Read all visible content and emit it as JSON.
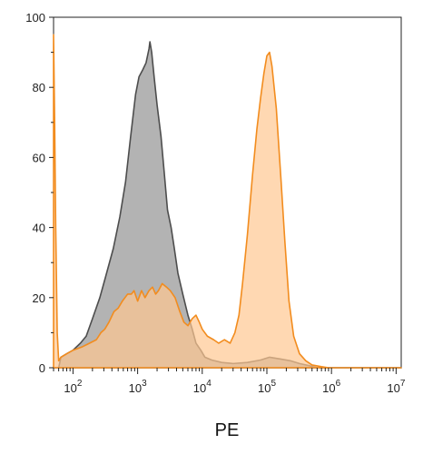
{
  "chart_data": {
    "type": "area",
    "title": "",
    "xlabel": "PE",
    "ylabel": "",
    "x_scale": "log",
    "xlim": [
      50,
      12000000
    ],
    "ylim": [
      0,
      100
    ],
    "x_tick_labels": [
      {
        "value": 100,
        "base": "10",
        "exp": "2"
      },
      {
        "value": 1000,
        "base": "10",
        "exp": "3"
      },
      {
        "value": 10000,
        "base": "10",
        "exp": "4"
      },
      {
        "value": 100000,
        "base": "10",
        "exp": "5"
      },
      {
        "value": 1000000,
        "base": "10",
        "exp": "6"
      },
      {
        "value": 10000000,
        "base": "10",
        "exp": "7"
      }
    ],
    "y_ticks": [
      0,
      20,
      40,
      60,
      80,
      100
    ],
    "grid": false,
    "series": [
      {
        "fill": "#b3b3b3",
        "stroke": "#4d4d4d",
        "points": [
          [
            50,
            0
          ],
          [
            60,
            0
          ],
          [
            65,
            3
          ],
          [
            80,
            4
          ],
          [
            100,
            5
          ],
          [
            130,
            7
          ],
          [
            160,
            9
          ],
          [
            200,
            14
          ],
          [
            260,
            20
          ],
          [
            320,
            26
          ],
          [
            420,
            34
          ],
          [
            530,
            43
          ],
          [
            650,
            53
          ],
          [
            780,
            66
          ],
          [
            930,
            78
          ],
          [
            1050,
            83
          ],
          [
            1200,
            85
          ],
          [
            1350,
            87
          ],
          [
            1500,
            91
          ],
          [
            1550,
            93
          ],
          [
            1650,
            90
          ],
          [
            1800,
            83
          ],
          [
            2000,
            75
          ],
          [
            2300,
            66
          ],
          [
            2600,
            55
          ],
          [
            2900,
            45
          ],
          [
            3300,
            40
          ],
          [
            3700,
            34
          ],
          [
            4200,
            27
          ],
          [
            5000,
            21
          ],
          [
            6000,
            15
          ],
          [
            7000,
            11
          ],
          [
            8000,
            7
          ],
          [
            9500,
            5
          ],
          [
            11000,
            3
          ],
          [
            14000,
            2.2
          ],
          [
            20000,
            1.5
          ],
          [
            30000,
            1.2
          ],
          [
            50000,
            1.5
          ],
          [
            80000,
            2.2
          ],
          [
            110000,
            3
          ],
          [
            160000,
            2.5
          ],
          [
            230000,
            2
          ],
          [
            320000,
            1.2
          ],
          [
            450000,
            0.6
          ],
          [
            600000,
            0
          ],
          [
            12000000,
            0
          ]
        ]
      },
      {
        "fill": "#ffc791",
        "fill_opacity": 0.7,
        "stroke": "#f28c1e",
        "points": [
          [
            50,
            95
          ],
          [
            52,
            70
          ],
          [
            54,
            40
          ],
          [
            57,
            10
          ],
          [
            60,
            2
          ],
          [
            65,
            3
          ],
          [
            80,
            4
          ],
          [
            100,
            5
          ],
          [
            140,
            6
          ],
          [
            180,
            7
          ],
          [
            230,
            8
          ],
          [
            270,
            10
          ],
          [
            310,
            11
          ],
          [
            360,
            13
          ],
          [
            430,
            16
          ],
          [
            500,
            17
          ],
          [
            580,
            19
          ],
          [
            700,
            21
          ],
          [
            800,
            21
          ],
          [
            880,
            22
          ],
          [
            1000,
            19
          ],
          [
            1150,
            22
          ],
          [
            1300,
            20
          ],
          [
            1500,
            22
          ],
          [
            1700,
            23
          ],
          [
            1900,
            21
          ],
          [
            2100,
            22
          ],
          [
            2400,
            24
          ],
          [
            2800,
            23
          ],
          [
            3200,
            22
          ],
          [
            3800,
            20
          ],
          [
            4500,
            16
          ],
          [
            5200,
            13
          ],
          [
            6000,
            12
          ],
          [
            7000,
            14
          ],
          [
            8000,
            15
          ],
          [
            9000,
            13
          ],
          [
            10000,
            11
          ],
          [
            12000,
            9
          ],
          [
            15000,
            8
          ],
          [
            18000,
            7
          ],
          [
            22000,
            8
          ],
          [
            27000,
            7
          ],
          [
            32000,
            10
          ],
          [
            37000,
            15
          ],
          [
            42000,
            24
          ],
          [
            50000,
            38
          ],
          [
            60000,
            55
          ],
          [
            70000,
            68
          ],
          [
            80000,
            77
          ],
          [
            90000,
            84
          ],
          [
            100000,
            89
          ],
          [
            110000,
            90
          ],
          [
            120000,
            86
          ],
          [
            140000,
            74
          ],
          [
            165000,
            54
          ],
          [
            190000,
            36
          ],
          [
            220000,
            19
          ],
          [
            260000,
            9
          ],
          [
            320000,
            4
          ],
          [
            400000,
            2
          ],
          [
            500000,
            0.8
          ],
          [
            700000,
            0.3
          ],
          [
            900000,
            0
          ],
          [
            12000000,
            0
          ]
        ]
      }
    ]
  }
}
